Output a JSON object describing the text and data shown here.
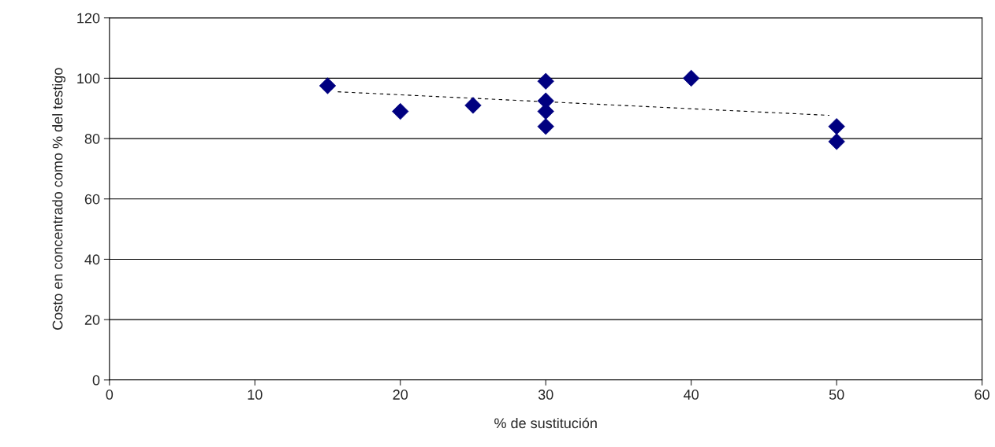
{
  "chart_data": {
    "type": "scatter",
    "xlabel": "% de sustitución",
    "ylabel": "Costo en concentrado como % del testigo",
    "xlim": [
      0,
      60
    ],
    "xticks": [
      0,
      10,
      20,
      30,
      40,
      50,
      60
    ],
    "ylim": [
      0,
      120
    ],
    "yticks": [
      0,
      20,
      40,
      60,
      80,
      100,
      120
    ],
    "grid": "y",
    "marker": "diamond",
    "series": [
      {
        "color": "#000080",
        "x": [
          15,
          20,
          25,
          30,
          30,
          30,
          30,
          40,
          50,
          50
        ],
        "values": [
          97.5,
          89,
          91,
          99,
          92.5,
          89,
          84,
          100,
          84,
          79
        ]
      },
      {
        "type": "line",
        "color": "#000000",
        "line_style": "dashed",
        "marker": "none",
        "x": [
          15.7,
          49.5
        ],
        "values": [
          95.5,
          87.7
        ]
      }
    ]
  }
}
